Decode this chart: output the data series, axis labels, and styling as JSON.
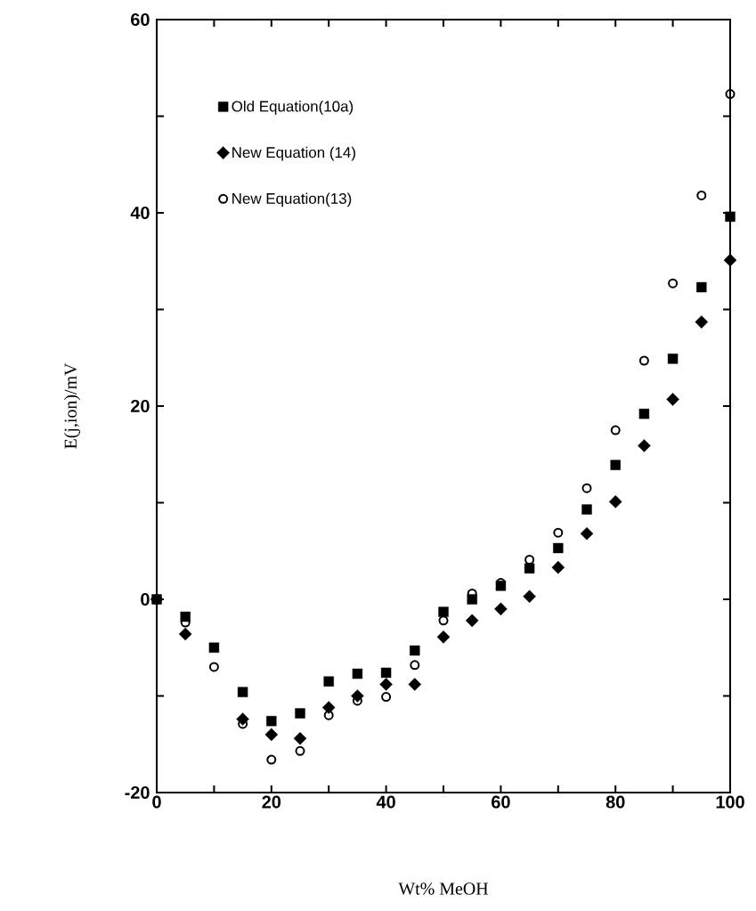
{
  "chart_data": {
    "type": "scatter",
    "xlabel": "Wt% MeOH",
    "ylabel": "E(j,ion)/mV",
    "x": [
      0,
      5,
      10,
      15,
      20,
      25,
      30,
      35,
      40,
      45,
      50,
      55,
      60,
      65,
      70,
      75,
      80,
      85,
      90,
      95,
      100
    ],
    "xlim": [
      0,
      100
    ],
    "ylim": [
      -20,
      60
    ],
    "xticks": [
      0,
      {
        "value": 10,
        "label": null
      },
      20,
      {
        "value": 30,
        "label": null
      },
      40,
      {
        "value": 50,
        "label": null
      },
      60,
      {
        "value": 70,
        "label": null
      },
      80,
      {
        "value": 90,
        "label": null
      },
      100
    ],
    "yticks": [
      -20,
      {
        "value": -10,
        "label": null
      },
      0,
      {
        "value": 10,
        "label": null
      },
      20,
      {
        "value": 30,
        "label": null
      },
      40,
      {
        "value": 50,
        "label": null
      },
      60
    ],
    "legend": "top left",
    "series": [
      {
        "name": "Old Equation(10a)",
        "color": "#000000",
        "marker": "square",
        "values": [
          0,
          -1.8,
          -5.0,
          -9.6,
          -12.6,
          -11.8,
          -8.5,
          -7.7,
          -7.6,
          -5.3,
          -1.3,
          0.0,
          1.4,
          3.2,
          5.3,
          9.3,
          13.9,
          19.2,
          24.9,
          32.3,
          39.6
        ]
      },
      {
        "name": "New Equation (14)",
        "color": "#000000",
        "marker": "diamond",
        "values": [
          0,
          -3.6,
          null,
          -12.4,
          -14.0,
          -14.4,
          -11.2,
          -10.0,
          -8.8,
          -8.8,
          -3.9,
          -2.2,
          -1.0,
          0.3,
          3.3,
          6.8,
          10.1,
          15.9,
          20.7,
          28.7,
          35.1
        ]
      },
      {
        "name": "New Equation(13)",
        "color": "#000000",
        "marker": "circle",
        "values": [
          0,
          -2.4,
          -7.0,
          -12.9,
          -16.6,
          -15.7,
          -12.0,
          -10.5,
          -10.1,
          -6.8,
          -2.2,
          0.6,
          1.7,
          4.1,
          6.9,
          11.5,
          17.5,
          24.7,
          32.7,
          41.8,
          52.3
        ]
      }
    ]
  }
}
